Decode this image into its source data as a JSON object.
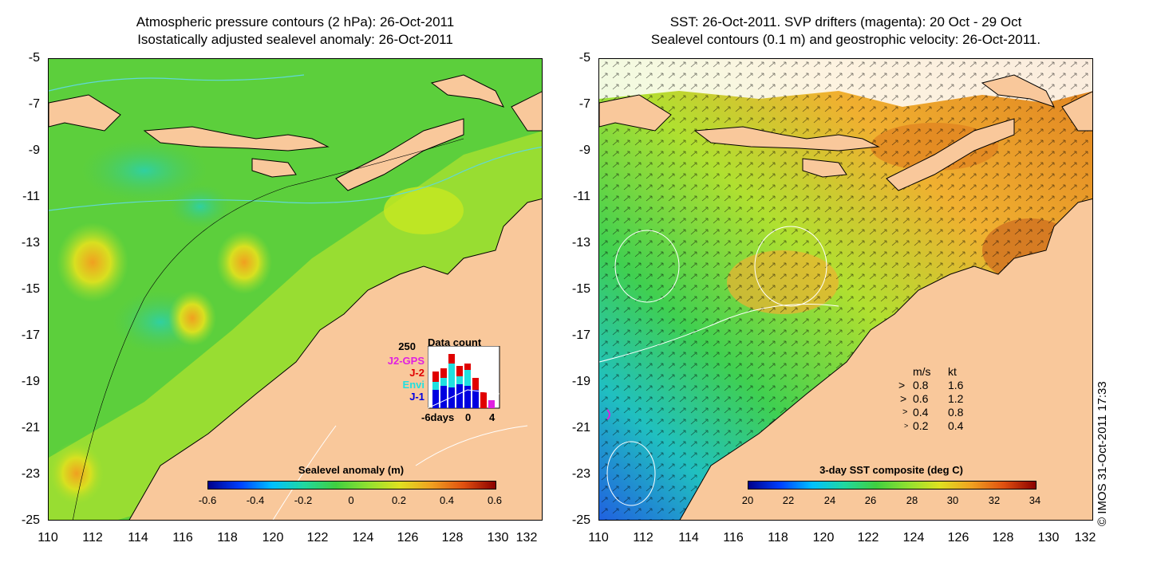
{
  "left_map": {
    "title_line1": "Atmospheric pressure contours (2 hPa): 26-Oct-2011",
    "title_line2": "Isostatically adjusted sealevel anomaly: 26-Oct-2011",
    "colorbar_title": "Sealevel anomaly (m)",
    "colorbar_ticks": [
      "-0.6",
      "-0.4",
      "-0.2",
      "0",
      "0.2",
      "0.4",
      "0.6"
    ],
    "inset": {
      "title": "Data count",
      "y_max_label": "250",
      "satellites": [
        {
          "name": "J2-GPS",
          "color": "#e020e0"
        },
        {
          "name": "J-2",
          "color": "#e00000"
        },
        {
          "name": "Envi",
          "color": "#20e0e0"
        },
        {
          "name": "J-1",
          "color": "#0000e0"
        }
      ],
      "x_ticks": [
        "-6days",
        "0",
        "4"
      ]
    }
  },
  "right_map": {
    "title_line1": "SST: 26-Oct-2011. SVP drifters (magenta): 20 Oct - 29 Oct",
    "title_line2": "Sealevel contours (0.1 m) and geostrophic velocity: 26-Oct-2011.",
    "colorbar_title": "3-day SST composite (deg C)",
    "colorbar_ticks": [
      "20",
      "22",
      "24",
      "26",
      "28",
      "30",
      "32",
      "34"
    ],
    "velocity_legend": {
      "header_ms": "m/s",
      "header_kt": "kt",
      "rows": [
        {
          "ms": "0.8",
          "kt": "1.6"
        },
        {
          "ms": "0.6",
          "kt": "1.2"
        },
        {
          "ms": "0.4",
          "kt": "0.8"
        },
        {
          "ms": "0.2",
          "kt": "0.4"
        }
      ]
    }
  },
  "y_axis_labels": [
    "-5",
    "-7",
    "-9",
    "-11",
    "-13",
    "-15",
    "-17",
    "-19",
    "-21",
    "-23",
    "-25"
  ],
  "x_axis_labels": [
    "110",
    "112",
    "114",
    "116",
    "118",
    "120",
    "122",
    "124",
    "126",
    "128",
    "130",
    "132"
  ],
  "credit": "© IMOS 31-Oct-2011 17:33",
  "colors": {
    "land": "#f9c89b",
    "ocean_green": "#3fcf3f",
    "sst_orange": "#f0a030"
  }
}
